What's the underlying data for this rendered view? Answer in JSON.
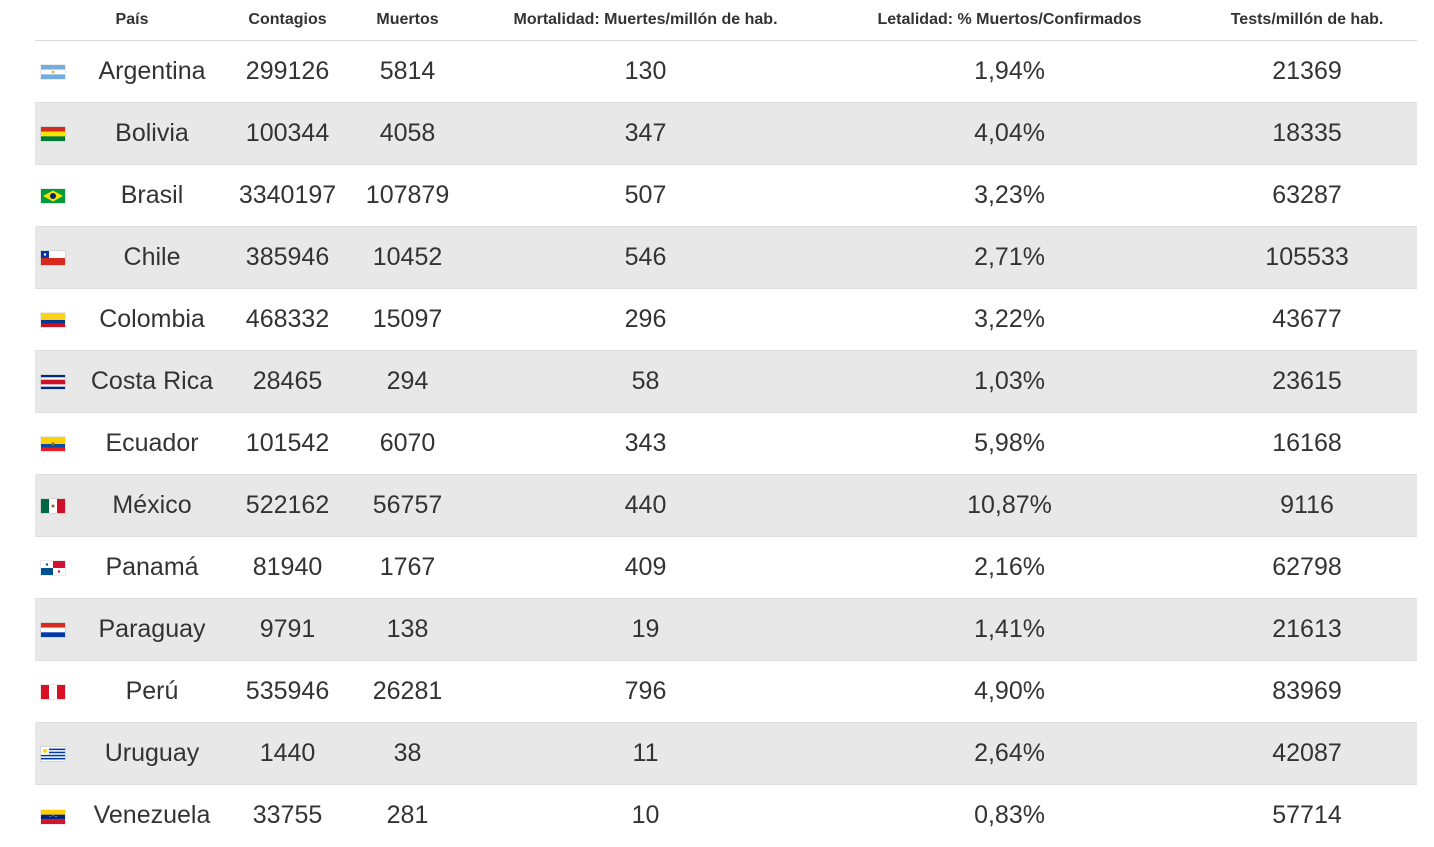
{
  "table": {
    "headers": [
      "País",
      "Contagios",
      "Muertos",
      "Mortalidad: Muertes/millón de hab.",
      "Letalidad: % Muertos/Confirmados",
      "Tests/millón de hab."
    ],
    "rows": [
      {
        "country": "Argentina",
        "flag_icon": "argentina-flag-icon",
        "contagios": "299126",
        "muertos": "5814",
        "mortalidad": "130",
        "letalidad": "1,94%",
        "tests": "21369"
      },
      {
        "country": "Bolivia",
        "flag_icon": "bolivia-flag-icon",
        "contagios": "100344",
        "muertos": "4058",
        "mortalidad": "347",
        "letalidad": "4,04%",
        "tests": "18335"
      },
      {
        "country": "Brasil",
        "flag_icon": "brasil-flag-icon",
        "contagios": "3340197",
        "muertos": "107879",
        "mortalidad": "507",
        "letalidad": "3,23%",
        "tests": "63287"
      },
      {
        "country": "Chile",
        "flag_icon": "chile-flag-icon",
        "contagios": "385946",
        "muertos": "10452",
        "mortalidad": "546",
        "letalidad": "2,71%",
        "tests": "105533"
      },
      {
        "country": "Colombia",
        "flag_icon": "colombia-flag-icon",
        "contagios": "468332",
        "muertos": "15097",
        "mortalidad": "296",
        "letalidad": "3,22%",
        "tests": "43677"
      },
      {
        "country": "Costa Rica",
        "flag_icon": "costa-rica-flag-icon",
        "contagios": "28465",
        "muertos": "294",
        "mortalidad": "58",
        "letalidad": "1,03%",
        "tests": "23615"
      },
      {
        "country": "Ecuador",
        "flag_icon": "ecuador-flag-icon",
        "contagios": "101542",
        "muertos": "6070",
        "mortalidad": "343",
        "letalidad": "5,98%",
        "tests": "16168"
      },
      {
        "country": "México",
        "flag_icon": "mexico-flag-icon",
        "contagios": "522162",
        "muertos": "56757",
        "mortalidad": "440",
        "letalidad": "10,87%",
        "tests": "9116"
      },
      {
        "country": "Panamá",
        "flag_icon": "panama-flag-icon",
        "contagios": "81940",
        "muertos": "1767",
        "mortalidad": "409",
        "letalidad": "2,16%",
        "tests": "62798"
      },
      {
        "country": "Paraguay",
        "flag_icon": "paraguay-flag-icon",
        "contagios": "9791",
        "muertos": "138",
        "mortalidad": "19",
        "letalidad": "1,41%",
        "tests": "21613"
      },
      {
        "country": "Perú",
        "flag_icon": "peru-flag-icon",
        "contagios": "535946",
        "muertos": "26281",
        "mortalidad": "796",
        "letalidad": "4,90%",
        "tests": "83969"
      },
      {
        "country": "Uruguay",
        "flag_icon": "uruguay-flag-icon",
        "contagios": "1440",
        "muertos": "38",
        "mortalidad": "11",
        "letalidad": "2,64%",
        "tests": "42087"
      },
      {
        "country": "Venezuela",
        "flag_icon": "venezuela-flag-icon",
        "contagios": "33755",
        "muertos": "281",
        "mortalidad": "10",
        "letalidad": "0,83%",
        "tests": "57714"
      }
    ]
  },
  "colors": {
    "text": "#333333",
    "stripe": "#e8e8e8",
    "divider": "#dedede"
  }
}
